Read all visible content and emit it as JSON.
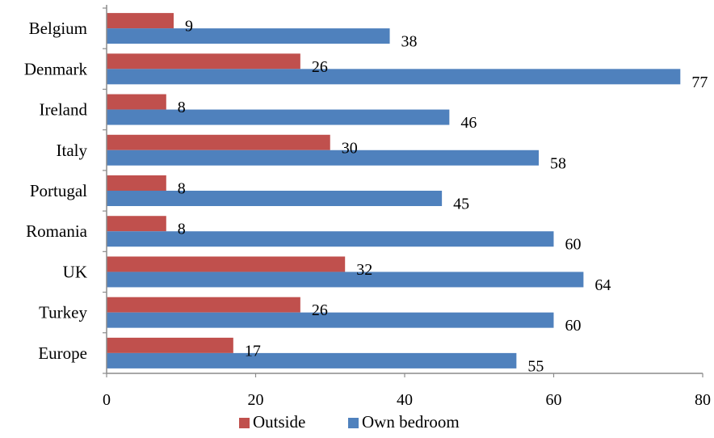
{
  "chart_data": {
    "type": "bar",
    "orientation": "horizontal",
    "title": "",
    "xlabel": "",
    "ylabel": "",
    "categories": [
      "Belgium",
      "Denmark",
      "Ireland",
      "Italy",
      "Portugal",
      "Romania",
      "UK",
      "Turkey",
      "Europe"
    ],
    "series": [
      {
        "name": "Outside",
        "color": "#c0504d",
        "values": [
          9,
          26,
          8,
          30,
          8,
          8,
          32,
          26,
          17
        ]
      },
      {
        "name": "Own bedroom",
        "color": "#4f81bd",
        "values": [
          38,
          77,
          46,
          58,
          45,
          60,
          64,
          60,
          55
        ]
      }
    ],
    "xlim": [
      0,
      80
    ],
    "xticks": [
      0,
      20,
      40,
      60,
      80
    ],
    "grid": false,
    "legend_position": "bottom"
  }
}
